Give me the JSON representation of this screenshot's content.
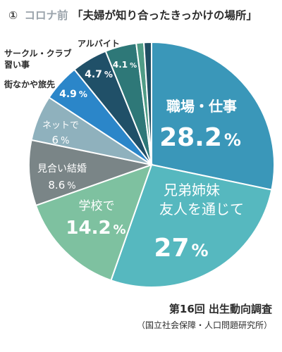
{
  "chart_data": {
    "type": "pie",
    "title_number": "①",
    "title_prefix": "コロナ前",
    "title_question": "「夫婦が知り合ったきっかけの場所」",
    "slices": [
      {
        "label": "職場・仕事",
        "value": 28.2,
        "value_text": "28.2",
        "color": "#3a97b9"
      },
      {
        "label": "兄弟姉妹 友人を通じて",
        "value": 27,
        "value_text": "27",
        "color": "#56b8bf"
      },
      {
        "label": "学校で",
        "value": 14.2,
        "value_text": "14.2",
        "color": "#7ec1a0"
      },
      {
        "label": "見合い結婚",
        "value": 8.6,
        "value_text": "8.6",
        "color": "#7a8587"
      },
      {
        "label": "ネットで",
        "value": 6,
        "value_text": "6",
        "color": "#8fb1bd"
      },
      {
        "label": "街なかや旅先",
        "value": 4.9,
        "value_text": "4.9",
        "color": "#2b86c9"
      },
      {
        "label": "サークル・クラブ 習い事",
        "value": 4.7,
        "value_text": "4.7",
        "color": "#205068"
      },
      {
        "label": "アルバイト",
        "value": 4.1,
        "value_text": "4.1",
        "color": "#2e7878"
      },
      {
        "label": "",
        "value": 1.0,
        "value_text": "",
        "color": "#4f9c86"
      },
      {
        "label": "",
        "value": 1.0,
        "value_text": "",
        "color": "#1f4e62"
      }
    ],
    "unit": "%"
  },
  "source": {
    "survey": "第16回 出生動向調査",
    "organization": "（国立社会保障・人口問題研究所）"
  }
}
